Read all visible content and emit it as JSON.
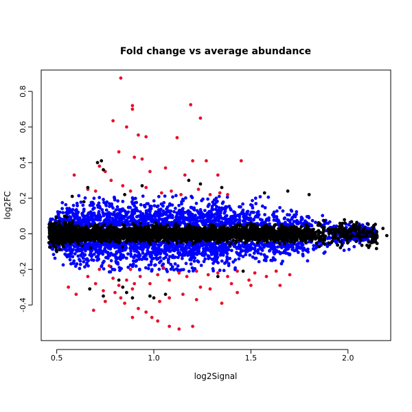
{
  "chart_data": {
    "type": "scatter",
    "title": "Fold change vs average abundance",
    "xlabel": "log2Signal",
    "ylabel": "log2FC",
    "xlim": [
      0.42,
      2.22
    ],
    "ylim": [
      -0.6,
      0.92
    ],
    "x_ticks": [
      0.5,
      1.0,
      1.5,
      2.0
    ],
    "x_tick_labels": [
      "0.5",
      "1.0",
      "1.5",
      "2.0"
    ],
    "y_ticks": [
      -0.4,
      -0.2,
      0.0,
      0.2,
      0.4,
      0.6,
      0.8
    ],
    "y_tick_labels": [
      "-0.4",
      "-0.2",
      "0.0",
      "0.2",
      "0.4",
      "0.6",
      "0.8"
    ],
    "grid": false,
    "colors": {
      "black": "#000000",
      "blue": "#0000ff",
      "red": "#e8102a"
    },
    "series": [
      {
        "color_key": "red",
        "points": [
          [
            0.83,
            0.875
          ],
          [
            0.89,
            0.72
          ],
          [
            0.89,
            0.7
          ],
          [
            1.19,
            0.725
          ],
          [
            1.24,
            0.65
          ],
          [
            0.79,
            0.635
          ],
          [
            0.86,
            0.6
          ],
          [
            0.92,
            0.555
          ],
          [
            0.96,
            0.545
          ],
          [
            1.12,
            0.54
          ],
          [
            0.82,
            0.46
          ],
          [
            0.9,
            0.43
          ],
          [
            0.94,
            0.42
          ],
          [
            1.2,
            0.41
          ],
          [
            1.27,
            0.41
          ],
          [
            1.45,
            0.41
          ],
          [
            0.72,
            0.38
          ],
          [
            0.75,
            0.35
          ],
          [
            0.98,
            0.35
          ],
          [
            1.06,
            0.37
          ],
          [
            1.16,
            0.33
          ],
          [
            1.33,
            0.33
          ],
          [
            0.59,
            0.33
          ],
          [
            0.66,
            0.25
          ],
          [
            0.7,
            0.24
          ],
          [
            0.78,
            0.3
          ],
          [
            0.84,
            0.27
          ],
          [
            0.88,
            0.24
          ],
          [
            0.96,
            0.26
          ],
          [
            1.04,
            0.23
          ],
          [
            1.09,
            0.24
          ],
          [
            1.14,
            0.22
          ],
          [
            1.23,
            0.25
          ],
          [
            1.29,
            0.22
          ],
          [
            1.34,
            0.23
          ],
          [
            1.38,
            0.22
          ],
          [
            0.66,
            -0.24
          ],
          [
            0.7,
            -0.28
          ],
          [
            0.74,
            -0.32
          ],
          [
            0.79,
            -0.25
          ],
          [
            0.82,
            -0.29
          ],
          [
            0.86,
            -0.26
          ],
          [
            0.89,
            -0.31
          ],
          [
            0.93,
            -0.24
          ],
          [
            0.98,
            -0.28
          ],
          [
            1.02,
            -0.23
          ],
          [
            1.08,
            -0.26
          ],
          [
            1.13,
            -0.22
          ],
          [
            1.17,
            -0.24
          ],
          [
            1.22,
            -0.21
          ],
          [
            1.28,
            -0.23
          ],
          [
            1.33,
            -0.22
          ],
          [
            1.38,
            -0.24
          ],
          [
            1.43,
            -0.21
          ],
          [
            1.49,
            -0.26
          ],
          [
            1.52,
            -0.22
          ],
          [
            1.58,
            -0.24
          ],
          [
            1.63,
            -0.21
          ],
          [
            1.7,
            -0.23
          ],
          [
            1.65,
            -0.29
          ],
          [
            0.56,
            -0.3
          ],
          [
            0.6,
            -0.34
          ],
          [
            0.69,
            -0.43
          ],
          [
            0.75,
            -0.38
          ],
          [
            0.8,
            -0.33
          ],
          [
            0.85,
            -0.39
          ],
          [
            0.89,
            -0.47
          ],
          [
            0.92,
            -0.42
          ],
          [
            0.96,
            -0.44
          ],
          [
            0.99,
            -0.47
          ],
          [
            1.03,
            -0.38
          ],
          [
            1.08,
            -0.36
          ],
          [
            1.15,
            -0.34
          ],
          [
            1.22,
            -0.37
          ],
          [
            1.29,
            -0.31
          ],
          [
            1.35,
            -0.39
          ],
          [
            1.43,
            -0.33
          ],
          [
            1.5,
            -0.29
          ],
          [
            0.83,
            -0.36
          ],
          [
            0.9,
            -0.28
          ],
          [
            1.02,
            -0.49
          ],
          [
            1.08,
            -0.52
          ],
          [
            1.13,
            -0.535
          ],
          [
            1.2,
            -0.52
          ],
          [
            0.72,
            -0.2
          ],
          [
            0.77,
            -0.18
          ],
          [
            0.88,
            -0.2
          ],
          [
            1.05,
            -0.19
          ],
          [
            1.24,
            -0.3
          ],
          [
            1.4,
            -0.28
          ]
        ]
      },
      {
        "color_key": "black",
        "points": [
          [
            0.71,
            0.4
          ],
          [
            0.73,
            0.41
          ],
          [
            0.74,
            0.36
          ],
          [
            0.66,
            0.26
          ],
          [
            0.85,
            0.22
          ],
          [
            0.94,
            0.27
          ],
          [
            1.18,
            0.3
          ],
          [
            1.24,
            0.28
          ],
          [
            1.35,
            0.26
          ],
          [
            1.57,
            0.23
          ],
          [
            1.69,
            0.24
          ],
          [
            1.8,
            0.22
          ],
          [
            0.58,
            0.21
          ],
          [
            0.64,
            0.18
          ],
          [
            0.82,
            -0.26
          ],
          [
            0.84,
            -0.3
          ],
          [
            0.98,
            -0.35
          ],
          [
            1.0,
            -0.36
          ],
          [
            0.86,
            -0.33
          ],
          [
            0.67,
            -0.31
          ],
          [
            1.33,
            -0.24
          ],
          [
            1.46,
            -0.21
          ],
          [
            0.5,
            -0.1
          ],
          [
            0.46,
            -0.05
          ],
          [
            2.18,
            0.03
          ],
          [
            2.2,
            -0.01
          ],
          [
            2.12,
            -0.05
          ],
          [
            1.06,
            -0.34
          ],
          [
            0.89,
            -0.36
          ],
          [
            0.74,
            -0.35
          ]
        ]
      }
    ]
  }
}
